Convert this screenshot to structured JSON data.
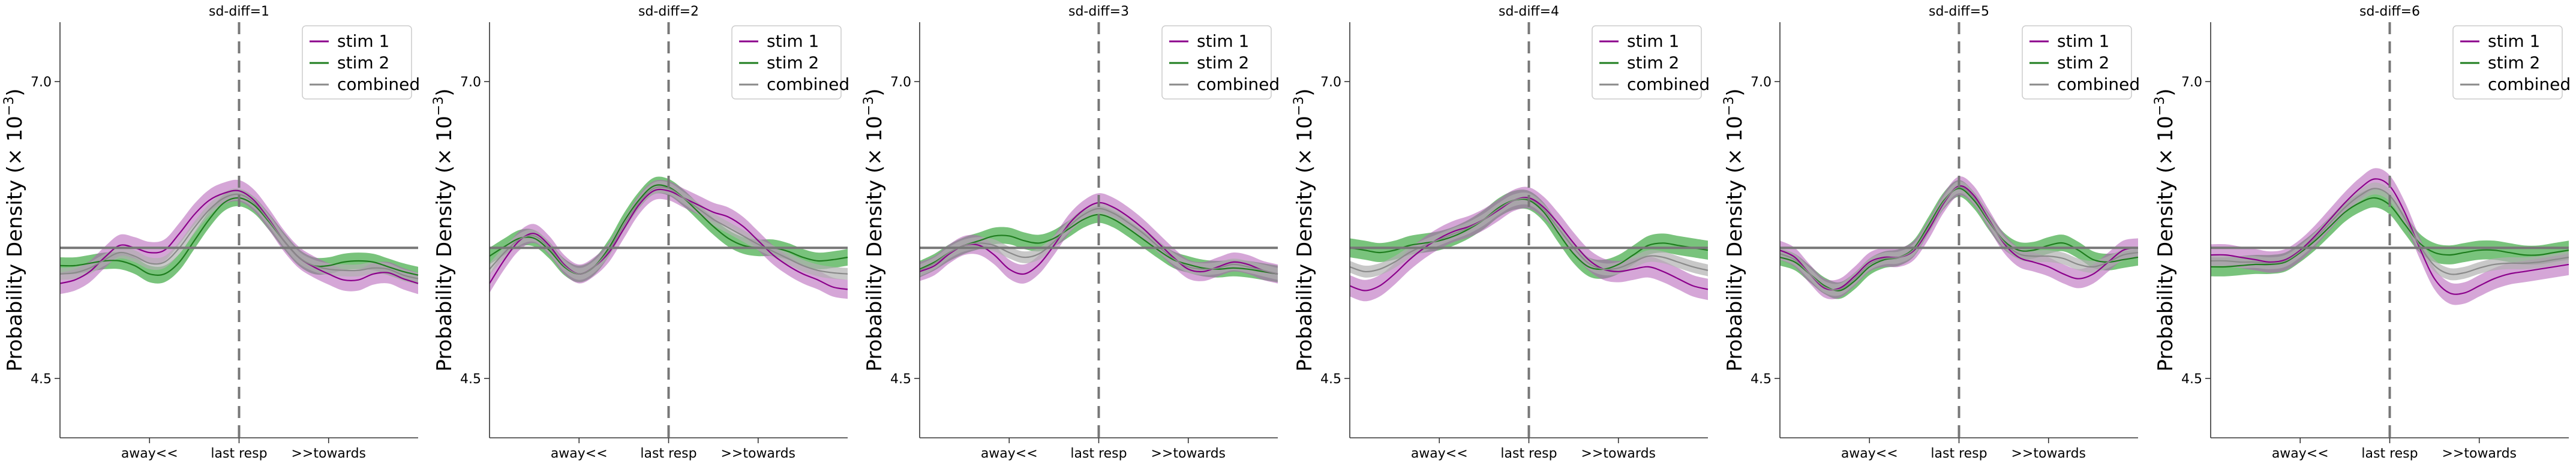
{
  "figure": {
    "background": "#ffffff"
  },
  "colors": {
    "stim1": "#8b008b",
    "stim1_band": "#b25cb6",
    "stim2": "#1e7d1e",
    "stim2_band": "#4caf50",
    "combined": "#8a8a8a",
    "combined_band": "#b0b0b0",
    "reference_line": "#777777",
    "axis": "#333333"
  },
  "chart_data": [
    {
      "type": "line",
      "title": "sd-diff=1",
      "ylabel": "Probability Density (× 10⁻³)",
      "xticks": [
        "away<<",
        "last resp",
        ">>towards"
      ],
      "yticks": [
        4.5,
        7.0
      ],
      "xlim": [
        -180,
        180
      ],
      "ylim": [
        4.0,
        7.5
      ],
      "hline": 5.6,
      "vline": 0,
      "legend_position": "top-right",
      "grid": false,
      "x": [
        -180,
        -165,
        -150,
        -135,
        -120,
        -105,
        -90,
        -75,
        -60,
        -45,
        -30,
        -15,
        0,
        15,
        30,
        45,
        60,
        75,
        90,
        105,
        120,
        135,
        150,
        165,
        180
      ],
      "series": [
        {
          "name": "stim 1",
          "values": [
            5.3,
            5.33,
            5.4,
            5.52,
            5.62,
            5.6,
            5.56,
            5.58,
            5.72,
            5.88,
            6.0,
            6.06,
            6.08,
            6.0,
            5.84,
            5.66,
            5.52,
            5.44,
            5.38,
            5.33,
            5.33,
            5.38,
            5.39,
            5.34,
            5.3
          ],
          "band": 0.09
        },
        {
          "name": "stim 2",
          "values": [
            5.45,
            5.45,
            5.47,
            5.49,
            5.49,
            5.45,
            5.38,
            5.38,
            5.48,
            5.66,
            5.84,
            5.98,
            6.02,
            5.96,
            5.82,
            5.66,
            5.52,
            5.45,
            5.45,
            5.48,
            5.49,
            5.48,
            5.44,
            5.4,
            5.37
          ],
          "band": 0.07
        },
        {
          "name": "combined",
          "values": [
            5.38,
            5.39,
            5.43,
            5.5,
            5.56,
            5.53,
            5.47,
            5.48,
            5.6,
            5.77,
            5.92,
            6.02,
            6.05,
            5.98,
            5.83,
            5.66,
            5.52,
            5.45,
            5.42,
            5.41,
            5.41,
            5.43,
            5.42,
            5.37,
            5.34
          ],
          "band": 0.05
        }
      ]
    },
    {
      "type": "line",
      "title": "sd-diff=2",
      "ylabel": "Probability Density (× 10⁻³)",
      "xticks": [
        "away<<",
        "last resp",
        ">>towards"
      ],
      "yticks": [
        4.5,
        7.0
      ],
      "xlim": [
        -180,
        180
      ],
      "ylim": [
        4.0,
        7.5
      ],
      "hline": 5.6,
      "vline": 0,
      "legend_position": "top-right",
      "grid": false,
      "x": [
        -180,
        -165,
        -150,
        -135,
        -120,
        -105,
        -90,
        -75,
        -60,
        -45,
        -30,
        -15,
        0,
        15,
        30,
        45,
        60,
        75,
        90,
        105,
        120,
        135,
        150,
        165,
        180
      ],
      "series": [
        {
          "name": "stim 1",
          "values": [
            5.3,
            5.5,
            5.66,
            5.72,
            5.62,
            5.46,
            5.38,
            5.44,
            5.56,
            5.76,
            5.96,
            6.08,
            6.08,
            6.02,
            5.96,
            5.9,
            5.86,
            5.78,
            5.66,
            5.54,
            5.45,
            5.38,
            5.33,
            5.27,
            5.25
          ],
          "band": 0.08
        },
        {
          "name": "stim 2",
          "values": [
            5.53,
            5.61,
            5.68,
            5.68,
            5.58,
            5.44,
            5.38,
            5.44,
            5.6,
            5.82,
            6.0,
            6.12,
            6.11,
            6.02,
            5.9,
            5.78,
            5.68,
            5.62,
            5.6,
            5.6,
            5.57,
            5.52,
            5.49,
            5.5,
            5.52
          ],
          "band": 0.07
        },
        {
          "name": "combined",
          "values": [
            5.42,
            5.56,
            5.67,
            5.7,
            5.6,
            5.45,
            5.38,
            5.44,
            5.58,
            5.79,
            5.98,
            6.1,
            6.1,
            6.02,
            5.93,
            5.84,
            5.77,
            5.7,
            5.63,
            5.57,
            5.51,
            5.45,
            5.41,
            5.39,
            5.38
          ],
          "band": 0.05
        }
      ]
    },
    {
      "type": "line",
      "title": "sd-diff=3",
      "ylabel": "Probability Density (× 10⁻³)",
      "xticks": [
        "away<<",
        "last resp",
        ">>towards"
      ],
      "yticks": [
        4.5,
        7.0
      ],
      "xlim": [
        -180,
        180
      ],
      "ylim": [
        4.0,
        7.5
      ],
      "hline": 5.6,
      "vline": 0,
      "legend_position": "top-right",
      "grid": false,
      "x": [
        -180,
        -165,
        -150,
        -135,
        -120,
        -105,
        -90,
        -75,
        -60,
        -45,
        -30,
        -15,
        0,
        15,
        30,
        45,
        60,
        75,
        90,
        105,
        120,
        135,
        150,
        165,
        180
      ],
      "series": [
        {
          "name": "stim 1",
          "values": [
            5.4,
            5.45,
            5.55,
            5.62,
            5.62,
            5.54,
            5.42,
            5.38,
            5.46,
            5.62,
            5.8,
            5.92,
            5.98,
            5.94,
            5.86,
            5.76,
            5.64,
            5.52,
            5.42,
            5.4,
            5.44,
            5.48,
            5.46,
            5.41,
            5.38
          ],
          "band": 0.08
        },
        {
          "name": "stim 2",
          "values": [
            5.42,
            5.48,
            5.56,
            5.62,
            5.66,
            5.7,
            5.7,
            5.66,
            5.64,
            5.68,
            5.76,
            5.84,
            5.88,
            5.84,
            5.76,
            5.67,
            5.58,
            5.5,
            5.46,
            5.43,
            5.42,
            5.43,
            5.42,
            5.4,
            5.38
          ],
          "band": 0.07
        },
        {
          "name": "combined",
          "values": [
            5.41,
            5.47,
            5.56,
            5.62,
            5.64,
            5.62,
            5.56,
            5.52,
            5.55,
            5.65,
            5.78,
            5.88,
            5.93,
            5.89,
            5.81,
            5.72,
            5.61,
            5.51,
            5.44,
            5.42,
            5.43,
            5.46,
            5.44,
            5.41,
            5.38
          ],
          "band": 0.05
        }
      ]
    },
    {
      "type": "line",
      "title": "sd-diff=4",
      "ylabel": "Probability Density (× 10⁻³)",
      "xticks": [
        "away<<",
        "last resp",
        ">>towards"
      ],
      "yticks": [
        4.5,
        7.0
      ],
      "xlim": [
        -180,
        180
      ],
      "ylim": [
        4.0,
        7.5
      ],
      "hline": 5.6,
      "vline": 0,
      "legend_position": "top-right",
      "grid": false,
      "x": [
        -180,
        -165,
        -150,
        -135,
        -120,
        -105,
        -90,
        -75,
        -60,
        -45,
        -30,
        -15,
        0,
        15,
        30,
        45,
        60,
        75,
        90,
        105,
        120,
        135,
        150,
        165,
        180
      ],
      "series": [
        {
          "name": "stim 1",
          "values": [
            5.28,
            5.24,
            5.28,
            5.38,
            5.5,
            5.6,
            5.68,
            5.74,
            5.78,
            5.84,
            5.92,
            6.0,
            6.02,
            5.94,
            5.8,
            5.64,
            5.5,
            5.42,
            5.4,
            5.42,
            5.44,
            5.4,
            5.34,
            5.28,
            5.25
          ],
          "band": 0.09
        },
        {
          "name": "stim 2",
          "values": [
            5.6,
            5.58,
            5.56,
            5.58,
            5.62,
            5.64,
            5.66,
            5.7,
            5.76,
            5.84,
            5.94,
            6.0,
            6.0,
            5.9,
            5.72,
            5.55,
            5.44,
            5.42,
            5.46,
            5.54,
            5.62,
            5.64,
            5.62,
            5.6,
            5.58
          ],
          "band": 0.08
        },
        {
          "name": "combined",
          "values": [
            5.44,
            5.4,
            5.42,
            5.48,
            5.56,
            5.62,
            5.67,
            5.72,
            5.77,
            5.84,
            5.93,
            6.0,
            6.01,
            5.92,
            5.76,
            5.6,
            5.47,
            5.42,
            5.43,
            5.48,
            5.53,
            5.52,
            5.48,
            5.44,
            5.41
          ],
          "band": 0.05
        }
      ]
    },
    {
      "type": "line",
      "title": "sd-diff=5",
      "ylabel": "Probability Density (× 10⁻³)",
      "xticks": [
        "away<<",
        "last resp",
        ">>towards"
      ],
      "yticks": [
        4.5,
        7.0
      ],
      "xlim": [
        -180,
        180
      ],
      "ylim": [
        4.0,
        7.5
      ],
      "hline": 5.6,
      "vline": 0,
      "legend_position": "top-right",
      "grid": false,
      "x": [
        -180,
        -165,
        -150,
        -135,
        -120,
        -105,
        -90,
        -75,
        -60,
        -45,
        -30,
        -15,
        0,
        15,
        30,
        45,
        60,
        75,
        90,
        105,
        120,
        135,
        150,
        165,
        180
      ],
      "series": [
        {
          "name": "stim 1",
          "values": [
            5.58,
            5.52,
            5.38,
            5.26,
            5.26,
            5.36,
            5.48,
            5.52,
            5.52,
            5.58,
            5.76,
            5.98,
            6.12,
            6.04,
            5.84,
            5.64,
            5.52,
            5.48,
            5.44,
            5.38,
            5.34,
            5.38,
            5.48,
            5.58,
            5.6
          ],
          "band": 0.08
        },
        {
          "name": "stim 2",
          "values": [
            5.52,
            5.48,
            5.38,
            5.28,
            5.24,
            5.32,
            5.44,
            5.5,
            5.52,
            5.6,
            5.8,
            6.0,
            6.1,
            6.0,
            5.82,
            5.66,
            5.58,
            5.58,
            5.62,
            5.64,
            5.58,
            5.5,
            5.48,
            5.5,
            5.52
          ],
          "band": 0.07
        },
        {
          "name": "combined",
          "values": [
            5.55,
            5.5,
            5.38,
            5.27,
            5.25,
            5.34,
            5.46,
            5.51,
            5.52,
            5.59,
            5.78,
            5.99,
            6.11,
            6.02,
            5.83,
            5.65,
            5.55,
            5.53,
            5.53,
            5.51,
            5.46,
            5.44,
            5.48,
            5.54,
            5.56
          ],
          "band": 0.05
        }
      ]
    },
    {
      "type": "line",
      "title": "sd-diff=6",
      "ylabel": "Probability Density (× 10⁻³)",
      "xticks": [
        "away<<",
        "last resp",
        ">>towards"
      ],
      "yticks": [
        4.5,
        7.0
      ],
      "xlim": [
        -180,
        180
      ],
      "ylim": [
        4.0,
        7.5
      ],
      "hline": 5.6,
      "vline": 0,
      "legend_position": "top-right",
      "grid": false,
      "x": [
        -180,
        -165,
        -150,
        -135,
        -120,
        -105,
        -90,
        -75,
        -60,
        -45,
        -30,
        -15,
        0,
        15,
        30,
        45,
        60,
        75,
        90,
        105,
        120,
        135,
        150,
        165,
        180
      ],
      "series": [
        {
          "name": "stim 1",
          "values": [
            5.54,
            5.54,
            5.52,
            5.5,
            5.48,
            5.5,
            5.58,
            5.7,
            5.84,
            5.98,
            6.1,
            6.18,
            6.12,
            5.9,
            5.6,
            5.34,
            5.22,
            5.22,
            5.28,
            5.34,
            5.38,
            5.4,
            5.42,
            5.44,
            5.46
          ],
          "band": 0.09
        },
        {
          "name": "stim 2",
          "values": [
            5.44,
            5.44,
            5.45,
            5.46,
            5.46,
            5.48,
            5.56,
            5.66,
            5.78,
            5.9,
            5.98,
            6.02,
            5.96,
            5.8,
            5.64,
            5.56,
            5.54,
            5.56,
            5.58,
            5.58,
            5.56,
            5.54,
            5.54,
            5.56,
            5.58
          ],
          "band": 0.08
        },
        {
          "name": "combined",
          "values": [
            5.49,
            5.49,
            5.48,
            5.48,
            5.47,
            5.49,
            5.57,
            5.68,
            5.81,
            5.94,
            6.04,
            6.1,
            6.04,
            5.85,
            5.62,
            5.45,
            5.38,
            5.39,
            5.43,
            5.46,
            5.47,
            5.47,
            5.48,
            5.5,
            5.52
          ],
          "band": 0.05
        }
      ]
    }
  ]
}
